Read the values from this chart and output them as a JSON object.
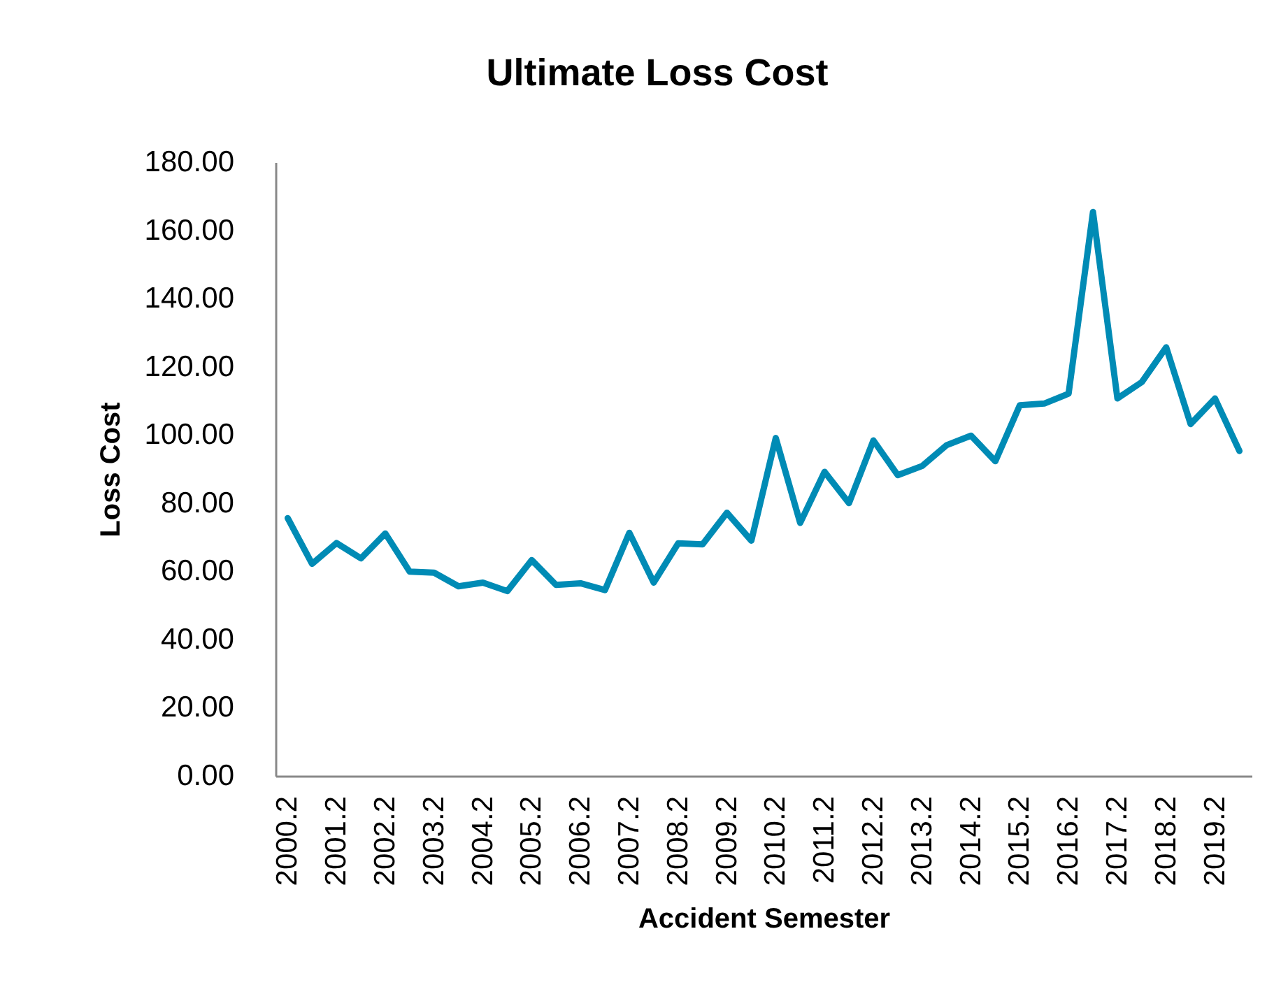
{
  "chart_data": {
    "type": "line",
    "title": "Ultimate Loss Cost",
    "xlabel": "Accident Semester",
    "ylabel": "Loss Cost",
    "categories": [
      "2000.2",
      null,
      "2001.2",
      null,
      "2002.2",
      null,
      "2003.2",
      null,
      "2004.2",
      null,
      "2005.2",
      null,
      "2006.2",
      null,
      "2007.2",
      null,
      "2008.2",
      null,
      "2009.2",
      null,
      "2010.2",
      null,
      "2011.2",
      null,
      "2012.2",
      null,
      "2013.2",
      null,
      "2014.2",
      null,
      "2015.2",
      null,
      "2016.2",
      null,
      "2017.2",
      null,
      "2018.2",
      null,
      "2019.2",
      null
    ],
    "series": [
      {
        "color": "#008bb5",
        "values": [
          75.6,
          62.2,
          68.3,
          63.8,
          71.1,
          59.9,
          59.6,
          55.6,
          56.7,
          54.2,
          63.3,
          56.0,
          56.5,
          54.5,
          71.3,
          56.7,
          68.2,
          67.9,
          77.2,
          69.0,
          99.1,
          74.2,
          89.2,
          80.0,
          98.4,
          88.2,
          90.9,
          97.0,
          99.8,
          92.3,
          108.7,
          109.2,
          112.1,
          165.4,
          110.7,
          115.5,
          125.7,
          103.2,
          110.7,
          95.3
        ]
      }
    ],
    "ylim": [
      0,
      180
    ],
    "yticks": [
      {
        "value": 0,
        "label": "0.00"
      },
      {
        "value": 20,
        "label": "20.00"
      },
      {
        "value": 40,
        "label": "40.00"
      },
      {
        "value": 60,
        "label": "60.00"
      },
      {
        "value": 80,
        "label": "80.00"
      },
      {
        "value": 100,
        "label": "100.00"
      },
      {
        "value": 120,
        "label": "120.00"
      },
      {
        "value": 140,
        "label": "140.00"
      },
      {
        "value": 160,
        "label": "160.00"
      },
      {
        "value": 180,
        "label": "180.00"
      }
    ],
    "line_style": "solid"
  }
}
